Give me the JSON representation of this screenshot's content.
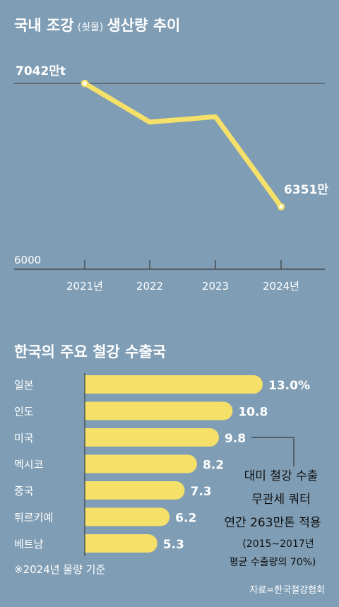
{
  "colors": {
    "background": "#7f9db4",
    "accent": "#f5e06a",
    "axis": "#3d3d3d",
    "text": "#ffffff",
    "callout_text": "#111111"
  },
  "chart_data": [
    {
      "type": "line",
      "title": "국내 조강",
      "title_note": "(쇳물)",
      "title_suffix": "생산량 추이",
      "x": [
        "2021년",
        "2022",
        "2023",
        "2024년"
      ],
      "values": [
        7042,
        6825,
        6855,
        6351
      ],
      "labels": {
        "first": "7042만t",
        "last": "6351만"
      },
      "y_tick_label": "6000",
      "ylim": [
        6000,
        7042
      ],
      "reference_line_value": 7042
    },
    {
      "type": "bar",
      "title": "한국의 주요 철강 수출국",
      "categories": [
        "일본",
        "인도",
        "미국",
        "멕시코",
        "중국",
        "튀르키예",
        "베트남"
      ],
      "values": [
        13.0,
        10.8,
        9.8,
        8.2,
        7.3,
        6.2,
        5.3
      ],
      "value_labels": [
        "13.0%",
        "10.8",
        "9.8",
        "8.2",
        "7.3",
        "6.2",
        "5.3"
      ],
      "footnote": "※2024년 물량 기준",
      "annotation": {
        "target": "미국",
        "lines": [
          "대미 철강 수출",
          "무관세 쿼터",
          "연간 263만톤 적용",
          "(2015~2017년",
          "평균 수출량의 70%)"
        ]
      }
    }
  ],
  "source": "자료=한국철강협회"
}
